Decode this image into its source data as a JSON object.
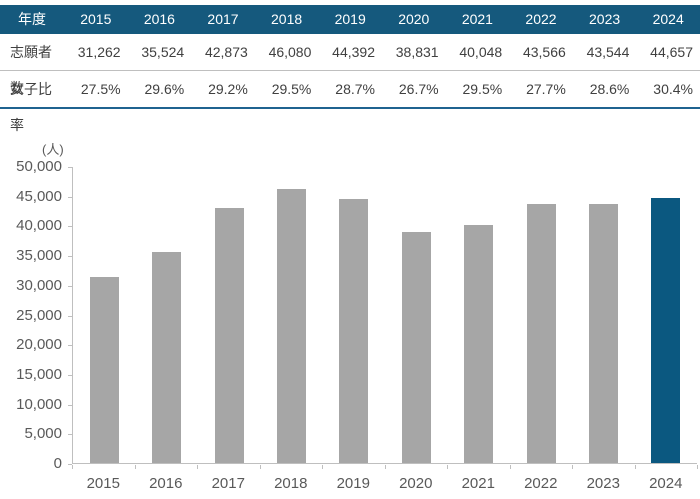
{
  "table": {
    "corner_label": "年度",
    "years": [
      "2015",
      "2016",
      "2017",
      "2018",
      "2019",
      "2020",
      "2021",
      "2022",
      "2023",
      "2024"
    ],
    "rows": [
      {
        "label": "志願者数",
        "values": [
          "31,262",
          "35,524",
          "42,873",
          "46,080",
          "44,392",
          "38,831",
          "40,048",
          "43,566",
          "43,544",
          "44,657"
        ]
      },
      {
        "label": "女子比率",
        "values": [
          "27.5%",
          "29.6%",
          "29.2%",
          "29.5%",
          "28.7%",
          "26.7%",
          "29.5%",
          "27.7%",
          "28.6%",
          "30.4%"
        ]
      }
    ]
  },
  "chart_data": {
    "type": "bar",
    "title": "",
    "unit_label": "(人)",
    "xlabel": "",
    "ylabel": "人",
    "categories": [
      "2015",
      "2016",
      "2017",
      "2018",
      "2019",
      "2020",
      "2021",
      "2022",
      "2023",
      "2024"
    ],
    "values": [
      31262,
      35524,
      42873,
      46080,
      44392,
      38831,
      40048,
      43566,
      43544,
      44657
    ],
    "ylim": [
      0,
      50000
    ],
    "ytick_step": 5000,
    "grid": false,
    "legend": "none",
    "bar_color": "#a6a6a6",
    "highlight_index": 9,
    "highlight_color": "#0b5880"
  },
  "colors": {
    "header_bg": "#15597d",
    "header_text": "#ffffff",
    "table_text": "#404040",
    "table_bottom_border": "#1f6390",
    "row_divider": "#bfbfbf",
    "axis_line": "#bfbfbf",
    "tick_label": "#595959",
    "bar_default": "#a6a6a6",
    "bar_highlight": "#0b5880"
  }
}
